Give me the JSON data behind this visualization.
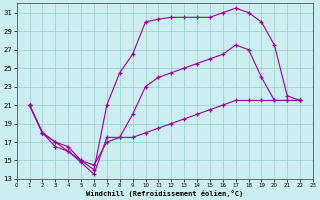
{
  "bg_color": "#cceef0",
  "line_color": "#990099",
  "grid_color": "#99cccc",
  "xlabel": "Windchill (Refroidissement éolien,°C)",
  "xlim": [
    0,
    23
  ],
  "ylim": [
    13,
    32
  ],
  "yticks": [
    13,
    15,
    17,
    19,
    21,
    23,
    25,
    27,
    29,
    31
  ],
  "xticks": [
    0,
    1,
    2,
    3,
    4,
    5,
    6,
    7,
    8,
    9,
    10,
    11,
    12,
    13,
    14,
    15,
    16,
    17,
    18,
    19,
    20,
    21,
    22,
    23
  ],
  "curve_top_x": [
    1,
    2,
    3,
    4,
    5,
    6,
    7,
    8,
    9,
    10,
    11,
    12,
    13,
    14,
    15,
    16,
    17,
    18,
    19,
    20,
    21,
    22
  ],
  "curve_top_y": [
    21,
    18,
    17,
    16.5,
    15,
    14,
    21,
    24.5,
    26.5,
    30,
    30.3,
    30.5,
    30.5,
    30.5,
    30.5,
    31,
    31.5,
    31,
    30,
    27.5,
    22,
    21.5
  ],
  "curve_mid_x": [
    1,
    2,
    3,
    4,
    5,
    6,
    7,
    8,
    9,
    10,
    11,
    12,
    13,
    14,
    15,
    16,
    17,
    18,
    19,
    20,
    21,
    22
  ],
  "curve_mid_y": [
    21,
    18,
    16.5,
    16,
    15,
    14.5,
    17,
    17.5,
    20,
    23,
    24,
    24.5,
    25,
    25.5,
    26,
    26.5,
    27.5,
    27,
    24,
    21.5,
    21.5,
    21.5
  ],
  "curve_bot_x": [
    1,
    2,
    3,
    4,
    5,
    6,
    7,
    8,
    9,
    10,
    11,
    12,
    13,
    14,
    15,
    16,
    17,
    18,
    19,
    20,
    21,
    22
  ],
  "curve_bot_y": [
    21,
    18,
    17,
    16,
    14.8,
    13.5,
    17.5,
    17.5,
    17.5,
    18,
    18.5,
    19,
    19.5,
    20,
    20.5,
    21,
    21.5,
    21.5,
    21.5,
    21.5,
    21.5,
    21.5
  ]
}
